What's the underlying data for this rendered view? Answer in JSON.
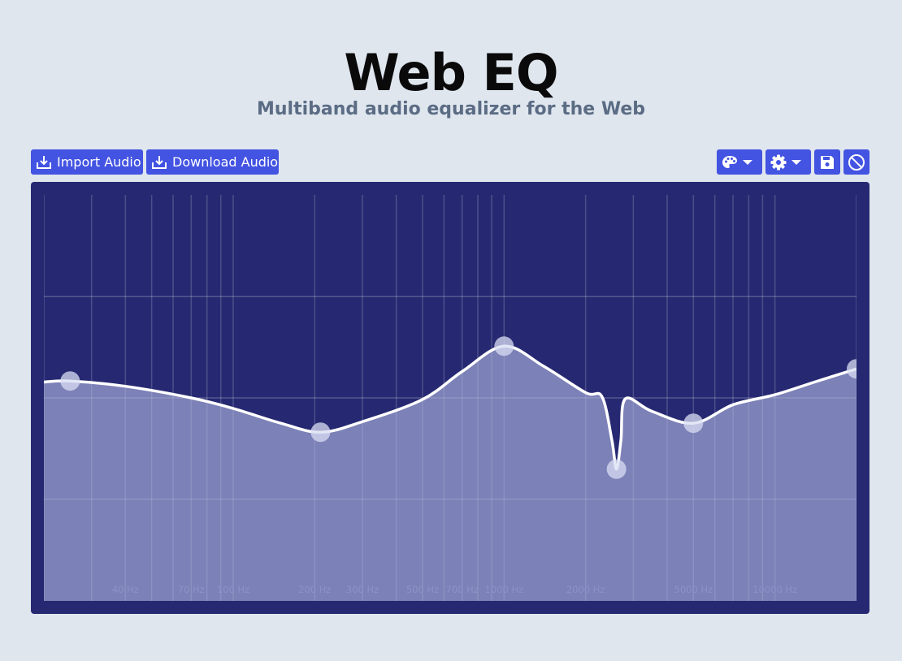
{
  "header": {
    "title": "Web EQ",
    "subtitle": "Multiband audio equalizer for the Web"
  },
  "toolbar": {
    "import_label": "Import Audio",
    "download_label": "Download Audio",
    "import_icon": "import-icon",
    "download_icon": "download-icon",
    "palette_icon": "palette-icon",
    "settings_icon": "gear-icon",
    "save_icon": "floppy-disk-icon",
    "disable_icon": "ban-icon"
  },
  "colors": {
    "accent": "#4353e2",
    "panel_bg": "#262971",
    "page_bg": "#dfe6ee",
    "curve": "#ffffff",
    "fill": "#7f8ab8"
  },
  "chart_data": {
    "type": "area",
    "x_scale": "log",
    "xlim_hz": [
      20,
      20000
    ],
    "grid": true,
    "freq_labels": [
      "40 Hz",
      "70 Hz",
      "100 Hz",
      "200 Hz",
      "300 Hz",
      "500 Hz",
      "700 Hz",
      "1000 Hz",
      "2000 Hz",
      "5000 Hz",
      "10000 Hz"
    ],
    "bands": [
      {
        "freq_hz": 25,
        "gain_db": 3.2
      },
      {
        "freq_hz": 210,
        "gain_db": -6.5
      },
      {
        "freq_hz": 1000,
        "gain_db": 9.8
      },
      {
        "freq_hz": 2600,
        "gain_db": -13.5
      },
      {
        "freq_hz": 5000,
        "gain_db": -4.8
      },
      {
        "freq_hz": 20000,
        "gain_db": 5.5
      }
    ],
    "curve": [
      [
        20,
        3.0
      ],
      [
        25,
        3.2
      ],
      [
        40,
        2.2
      ],
      [
        70,
        0.0
      ],
      [
        100,
        -2.0
      ],
      [
        150,
        -4.8
      ],
      [
        210,
        -6.5
      ],
      [
        300,
        -4.5
      ],
      [
        500,
        -0.3
      ],
      [
        700,
        5.0
      ],
      [
        1000,
        9.8
      ],
      [
        1400,
        6.0
      ],
      [
        2000,
        1.0
      ],
      [
        2300,
        0.2
      ],
      [
        2500,
        -8.0
      ],
      [
        2600,
        -13.5
      ],
      [
        2700,
        -8.0
      ],
      [
        2800,
        -0.2
      ],
      [
        3500,
        -2.5
      ],
      [
        5000,
        -4.8
      ],
      [
        7000,
        -1.3
      ],
      [
        10000,
        0.6
      ],
      [
        14000,
        3.0
      ],
      [
        20000,
        5.5
      ]
    ]
  }
}
